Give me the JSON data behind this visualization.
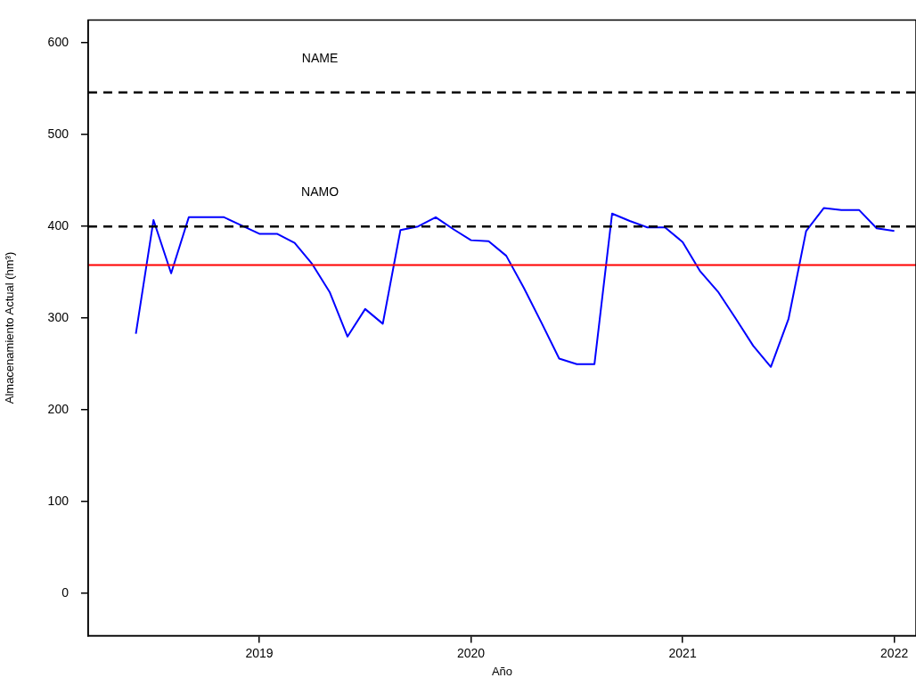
{
  "chart_data": {
    "type": "line",
    "xlabel": "Año",
    "ylabel": "Almacenamiento Actual (hm³)",
    "x": [
      "2018-06",
      "2018-07",
      "2018-08",
      "2018-09",
      "2018-10",
      "2018-11",
      "2018-12",
      "2019-01",
      "2019-02",
      "2019-03",
      "2019-04",
      "2019-05",
      "2019-06",
      "2019-07",
      "2019-08",
      "2019-09",
      "2019-10",
      "2019-11",
      "2019-12",
      "2020-01",
      "2020-02",
      "2020-03",
      "2020-04",
      "2020-05",
      "2020-06",
      "2020-07",
      "2020-08",
      "2020-09",
      "2020-10",
      "2020-11",
      "2020-12",
      "2021-01",
      "2021-02",
      "2021-03",
      "2021-04",
      "2021-05",
      "2021-06",
      "2021-07",
      "2021-08",
      "2021-09",
      "2021-10",
      "2021-11",
      "2021-12",
      "2022-01"
    ],
    "series": [
      {
        "color": "#0000ff",
        "values": [
          283,
          407,
          349,
          410,
          410,
          410,
          401,
          392,
          392,
          382,
          359,
          328,
          280,
          310,
          294,
          396,
          400,
          410,
          397,
          385,
          384,
          368,
          333,
          295,
          256,
          250,
          250,
          414,
          406,
          399,
          399,
          383,
          351,
          329,
          300,
          270,
          247,
          299,
          395,
          420,
          418,
          418,
          398,
          395
        ]
      }
    ],
    "xlim": [
      "2018-03-10",
      "2022-02-08"
    ],
    "xticks": [
      "2019",
      "2020",
      "2021",
      "2022"
    ],
    "ylim": [
      -46,
      625
    ],
    "yticks": [
      0,
      100,
      200,
      300,
      400,
      500,
      600
    ],
    "ref_lines": [
      {
        "axis": "y",
        "value": 546,
        "label": "NAME",
        "color": "#000000",
        "line_style": "dashed"
      },
      {
        "axis": "y",
        "value": 400,
        "label": "NAMO",
        "color": "#000000",
        "line_style": "dashed"
      },
      {
        "axis": "y",
        "value": 358,
        "color": "#ff0000",
        "line_style": "solid"
      }
    ],
    "grid": false,
    "legend": false,
    "marker": "none",
    "line_style": "solid"
  }
}
